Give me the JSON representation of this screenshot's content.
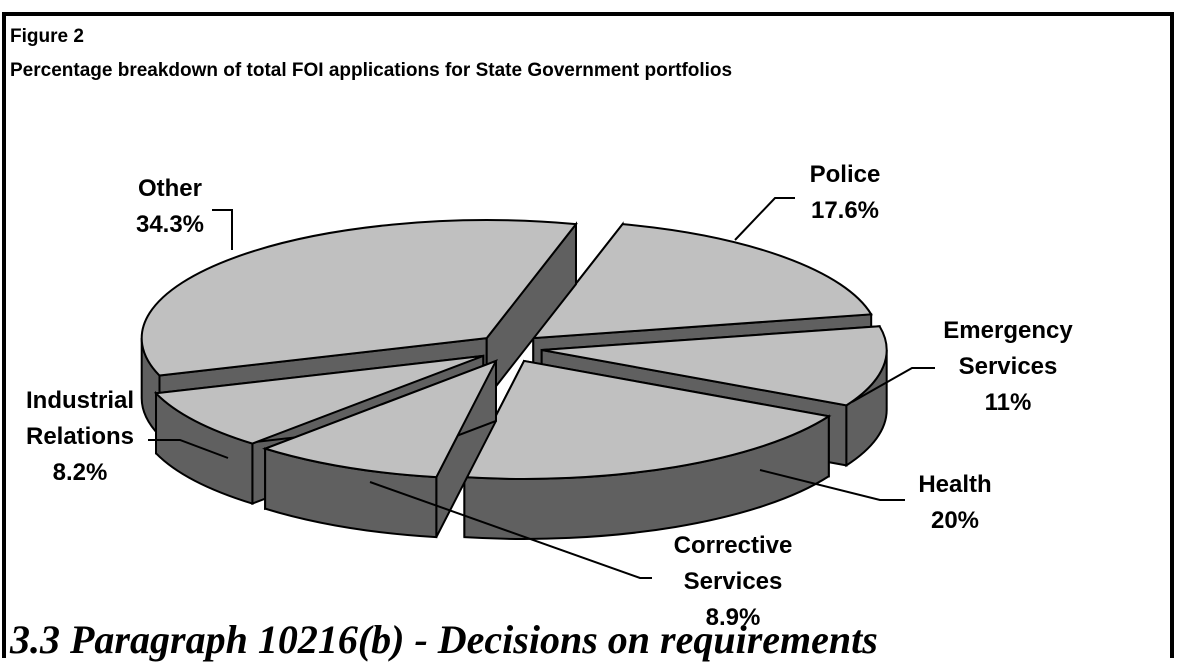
{
  "figure": {
    "label": "Figure  2",
    "title": "Percentage breakdown of total FOI applications for State Government portfolios"
  },
  "background_text": "3.3    Paragraph 10216(b) - Decisions on requirements",
  "colors": {
    "top": "#c0c0c0",
    "side": "#606060",
    "outline": "#000000"
  },
  "chart_data": {
    "type": "pie",
    "style": "3d-exploded",
    "title": "Percentage breakdown of total FOI applications for State Government portfolios",
    "slices": [
      {
        "name": "Police",
        "value": 17.6,
        "label_lines": [
          "Police",
          "17.6%"
        ]
      },
      {
        "name": "Emergency Services",
        "value": 11,
        "label_lines": [
          "Emergency",
          "Services",
          "11%"
        ]
      },
      {
        "name": "Health",
        "value": 20,
        "label_lines": [
          "Health",
          "20%"
        ]
      },
      {
        "name": "Corrective Services",
        "value": 8.9,
        "label_lines": [
          "Corrective",
          "Services",
          "8.9%"
        ]
      },
      {
        "name": "Industrial Relations",
        "value": 8.2,
        "label_lines": [
          "Industrial",
          "Relations",
          "8.2%"
        ]
      },
      {
        "name": "Other",
        "value": 34.3,
        "label_lines": [
          "Other",
          "34.3%"
        ]
      }
    ]
  }
}
